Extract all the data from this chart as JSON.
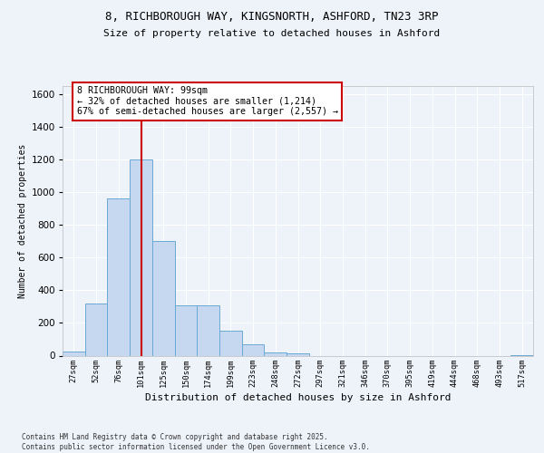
{
  "title_line1": "8, RICHBOROUGH WAY, KINGSNORTH, ASHFORD, TN23 3RP",
  "title_line2": "Size of property relative to detached houses in Ashford",
  "xlabel": "Distribution of detached houses by size in Ashford",
  "ylabel": "Number of detached properties",
  "bar_labels": [
    "27sqm",
    "52sqm",
    "76sqm",
    "101sqm",
    "125sqm",
    "150sqm",
    "174sqm",
    "199sqm",
    "223sqm",
    "248sqm",
    "272sqm",
    "297sqm",
    "321sqm",
    "346sqm",
    "370sqm",
    "395sqm",
    "419sqm",
    "444sqm",
    "468sqm",
    "493sqm",
    "517sqm"
  ],
  "bar_values": [
    25,
    320,
    960,
    1200,
    700,
    310,
    310,
    150,
    70,
    20,
    15,
    0,
    0,
    0,
    0,
    0,
    0,
    0,
    0,
    0,
    5
  ],
  "bar_color": "#c5d8f0",
  "bar_edgecolor": "#6aaad4",
  "vline_color": "#cc0000",
  "annotation_line1": "8 RICHBOROUGH WAY: 99sqm",
  "annotation_line2": "← 32% of detached houses are smaller (1,214)",
  "annotation_line3": "67% of semi-detached houses are larger (2,557) →",
  "annotation_box_edgecolor": "#cc0000",
  "ylim": [
    0,
    1650
  ],
  "yticks": [
    0,
    200,
    400,
    600,
    800,
    1000,
    1200,
    1400,
    1600
  ],
  "background_color": "#eef2f9",
  "grid_color": "#ffffff",
  "footer_line1": "Contains HM Land Registry data © Crown copyright and database right 2025.",
  "footer_line2": "Contains public sector information licensed under the Open Government Licence v3.0."
}
